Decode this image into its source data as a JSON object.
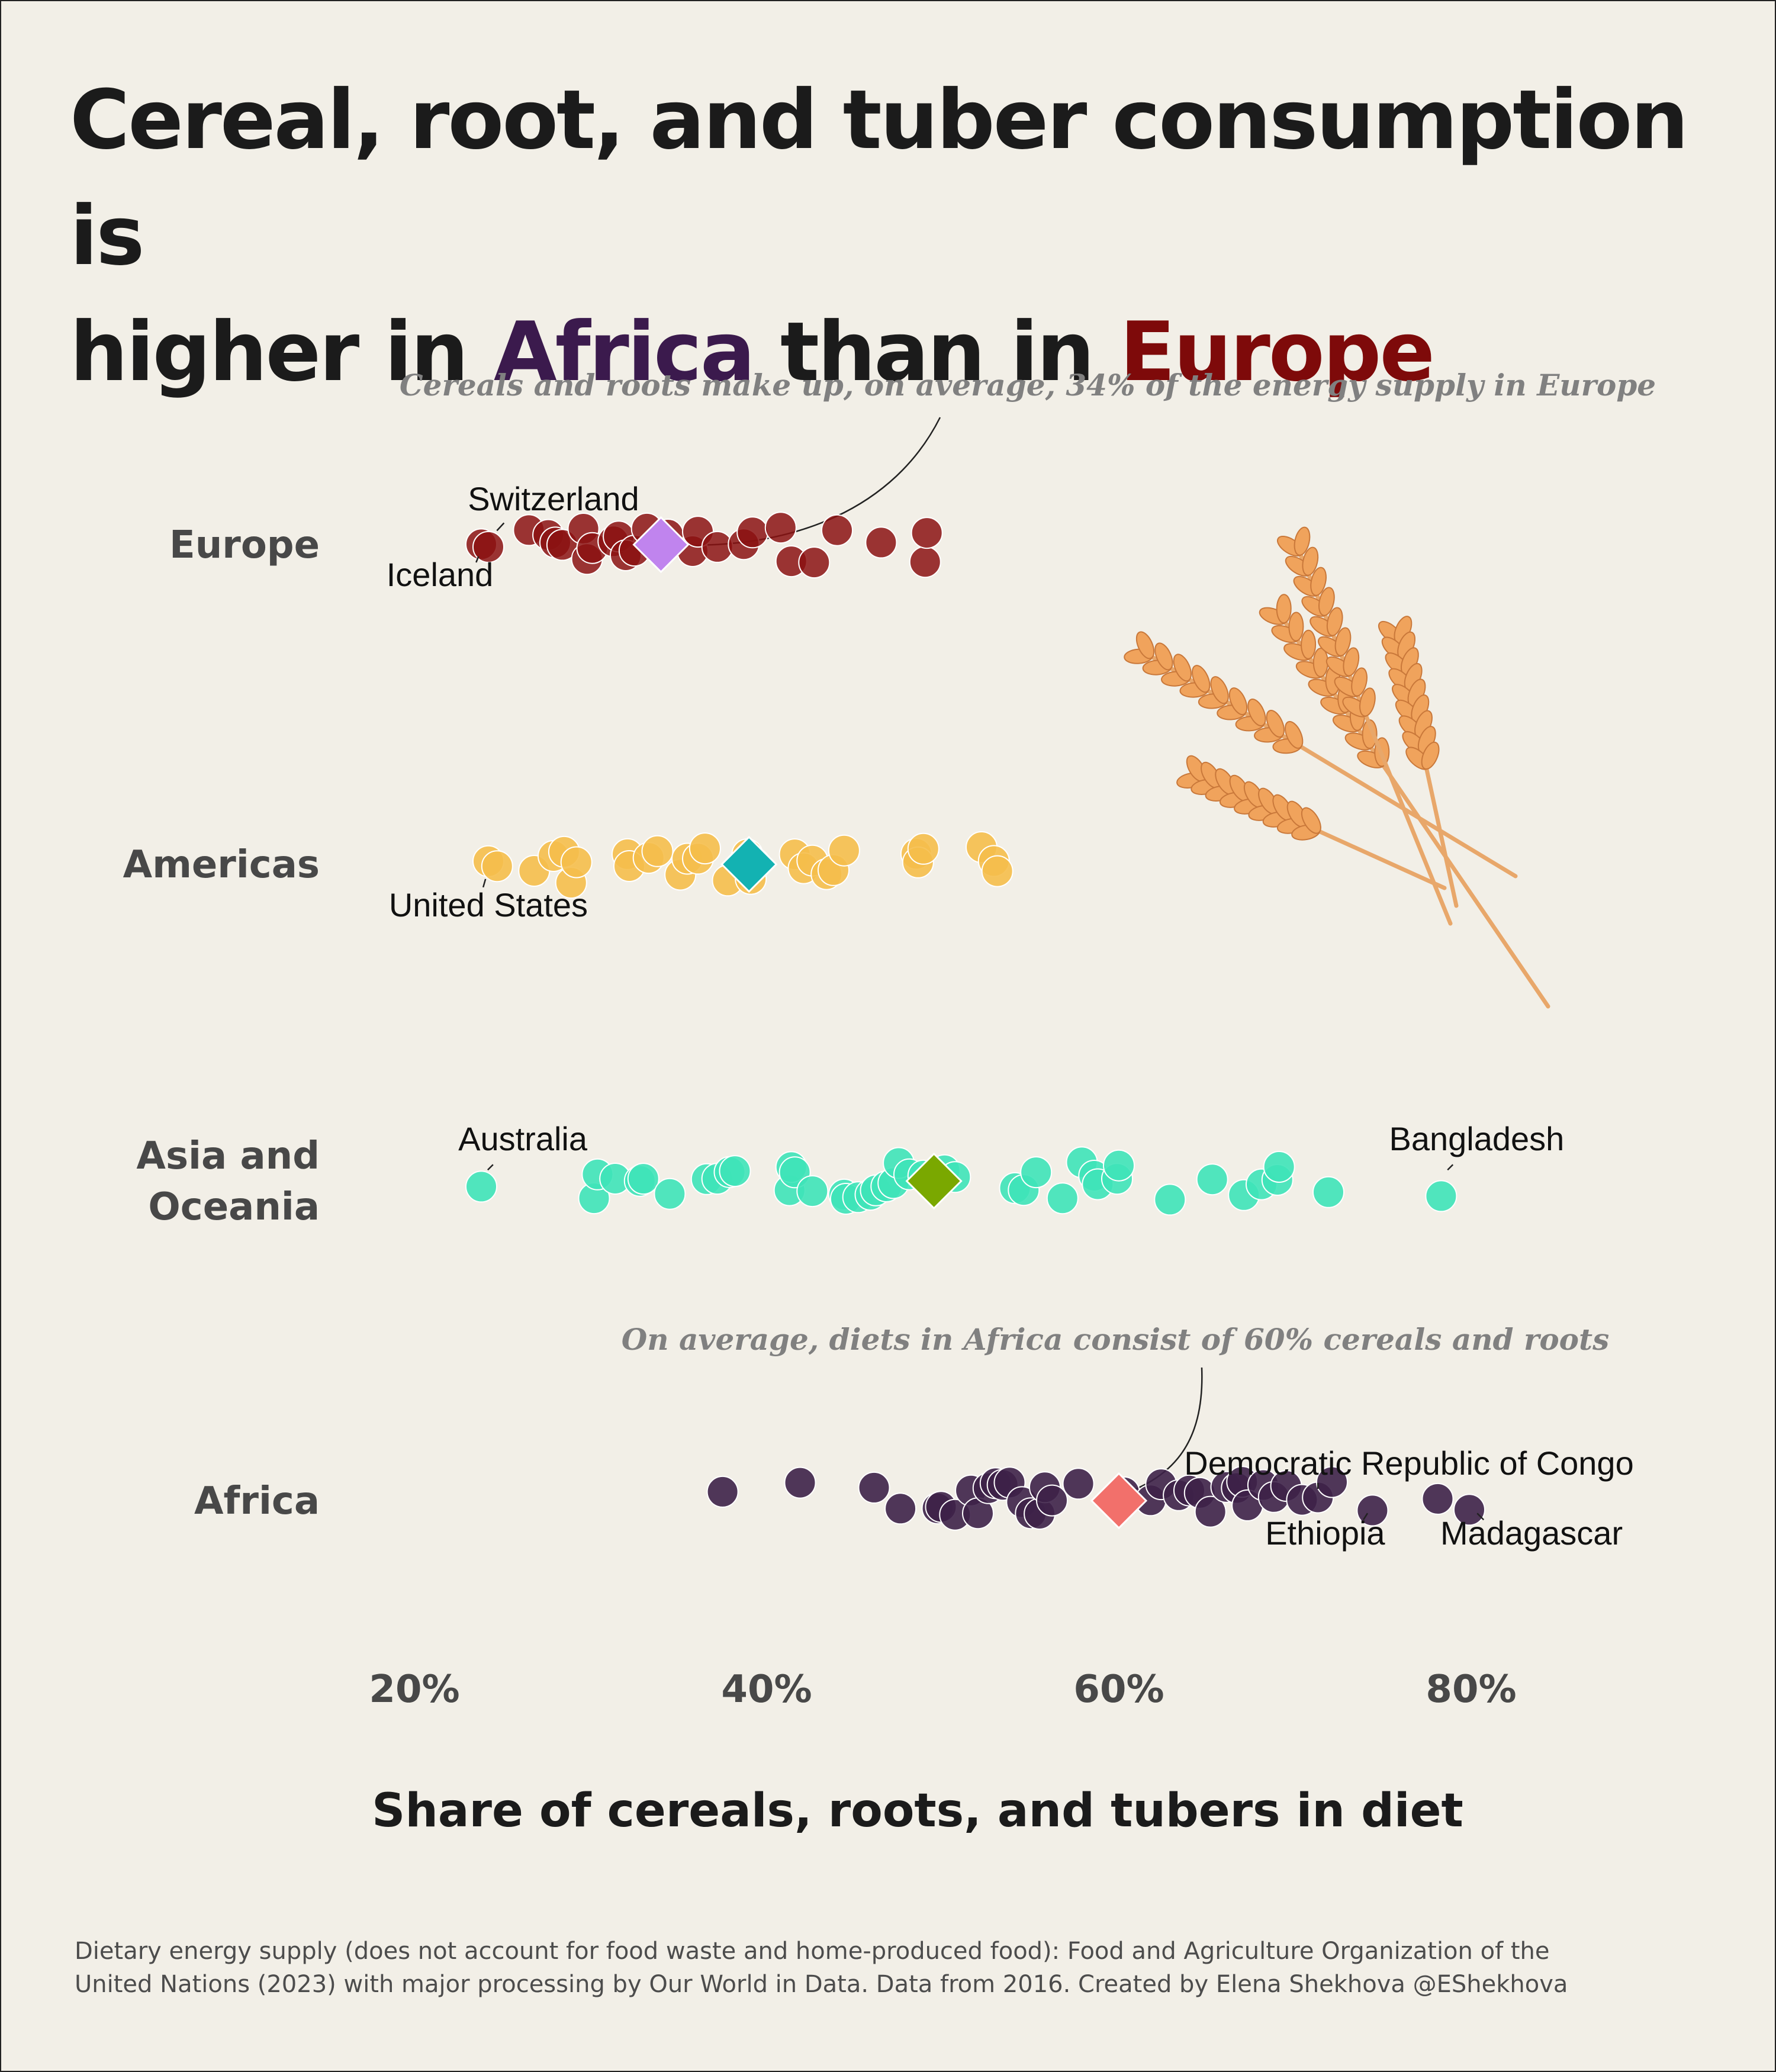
{
  "title": {
    "line1": "Cereal, root, and tuber consumption is",
    "line2_pre": "higher in ",
    "africa": "Africa",
    "mid": " than in ",
    "europe": "Europe"
  },
  "footer": {
    "line1": "Dietary energy supply (does not account for food waste and home-produced food): Food and Agriculture Organization of the",
    "line2": "United Nations (2023) with major processing by Our World in Data. Data from 2016. Created by Elena Shekhova @EShekhova"
  },
  "colors": {
    "Europe": "#8b1212",
    "Americas": "#f5be4b",
    "Asia and Oceania": "#3ee3b8",
    "Africa": "#3d2148",
    "highlight_africa": "#3b1a4d",
    "highlight_europe": "#7e0a0a",
    "background": "#f2efe7"
  },
  "icons": {
    "wheat": "wheat-icon"
  },
  "chart_data": {
    "type": "scatter",
    "xlabel": "Share of cereals, roots, and tubers in diet",
    "xlim": [
      20,
      80
    ],
    "xticks": [
      20,
      40,
      60,
      80
    ],
    "xtick_labels": [
      "20%",
      "40%",
      "60%",
      "80%"
    ],
    "categories": [
      "Europe",
      "Americas",
      "Asia and\nOceania",
      "Africa"
    ],
    "series": [
      {
        "name": "Europe",
        "mean": 34,
        "values": [
          23.8,
          24.2,
          26.5,
          27.6,
          28,
          28.4,
          29.6,
          29.8,
          30.1,
          31.3,
          31.6,
          32,
          32.5,
          33.2,
          33.7,
          34.4,
          35.8,
          36.1,
          37.2,
          38.7,
          39.2,
          40.8,
          41.4,
          42.7,
          44,
          46.5,
          49,
          49.1
        ],
        "labels": [
          {
            "name": "Switzerland",
            "value": 24.2
          },
          {
            "name": "Iceland",
            "value": 23.8
          }
        ]
      },
      {
        "name": "Americas",
        "mean": 39,
        "values": [
          24.2,
          24.7,
          26.8,
          27.9,
          28.5,
          28.9,
          29.2,
          32.1,
          32.2,
          33.3,
          33.8,
          35.1,
          35.5,
          36.1,
          36.5,
          37.8,
          38.9,
          39.1,
          39.3,
          41.6,
          42.1,
          42.6,
          43.4,
          43.8,
          44.4,
          48.5,
          48.6,
          48.9,
          52.2,
          52.9,
          53.1
        ],
        "labels": [
          {
            "name": "United States",
            "value": 24.2
          }
        ]
      },
      {
        "name": "Asia and Oceania",
        "mean": 49.5,
        "values": [
          23.8,
          30.2,
          30.4,
          31.4,
          32.8,
          33,
          34.5,
          36.6,
          37.2,
          37.9,
          38.2,
          41.3,
          41.4,
          41.6,
          42.6,
          44.4,
          44.5,
          45.2,
          45.9,
          46.2,
          46.8,
          47.2,
          47.5,
          48.1,
          48.9,
          50.1,
          50.7,
          54.1,
          54.6,
          55.3,
          56.8,
          57.9,
          58.6,
          58.8,
          59.9,
          60,
          62.9,
          65.3,
          67.1,
          68.1,
          69,
          69.1,
          71.9,
          78.3
        ],
        "labels": [
          {
            "name": "Australia",
            "value": 23.8
          },
          {
            "name": "Bangladesh",
            "value": 78.3
          }
        ]
      },
      {
        "name": "Africa",
        "mean": 60,
        "values": [
          37.5,
          41.9,
          46.1,
          47.6,
          49.7,
          49.9,
          50.7,
          51.6,
          52,
          52.6,
          53,
          53.4,
          53.8,
          54.5,
          55,
          55.5,
          55.8,
          56.2,
          57.7,
          60.3,
          61.8,
          62.4,
          63.4,
          64,
          64.6,
          65.2,
          66.1,
          66.7,
          67,
          67.3,
          68.2,
          68.8,
          69.5,
          70.4,
          71.3,
          72.1,
          74.4,
          78.1,
          79.9
        ],
        "labels": [
          {
            "name": "Democratic Republic of Congo",
            "value": 71.3
          },
          {
            "name": "Ethiopia",
            "value": 74.4
          },
          {
            "name": "Madagascar",
            "value": 79.9
          }
        ]
      }
    ],
    "annotations": [
      {
        "text": "Cereals and roots make up, on average, 34% of the energy supply in Europe",
        "target": "Europe"
      },
      {
        "text": "On average, diets in Africa consist of 60% cereals and roots",
        "target": "Africa"
      }
    ],
    "mean_markers": [
      {
        "series": "Europe",
        "value": 34,
        "color": "#c084ee"
      },
      {
        "series": "Americas",
        "value": 39,
        "color": "#13b2b2"
      },
      {
        "series": "Asia and Oceania",
        "value": 49.5,
        "color": "#7aa800"
      },
      {
        "series": "Africa",
        "value": 60,
        "color": "#f2706b"
      }
    ]
  }
}
